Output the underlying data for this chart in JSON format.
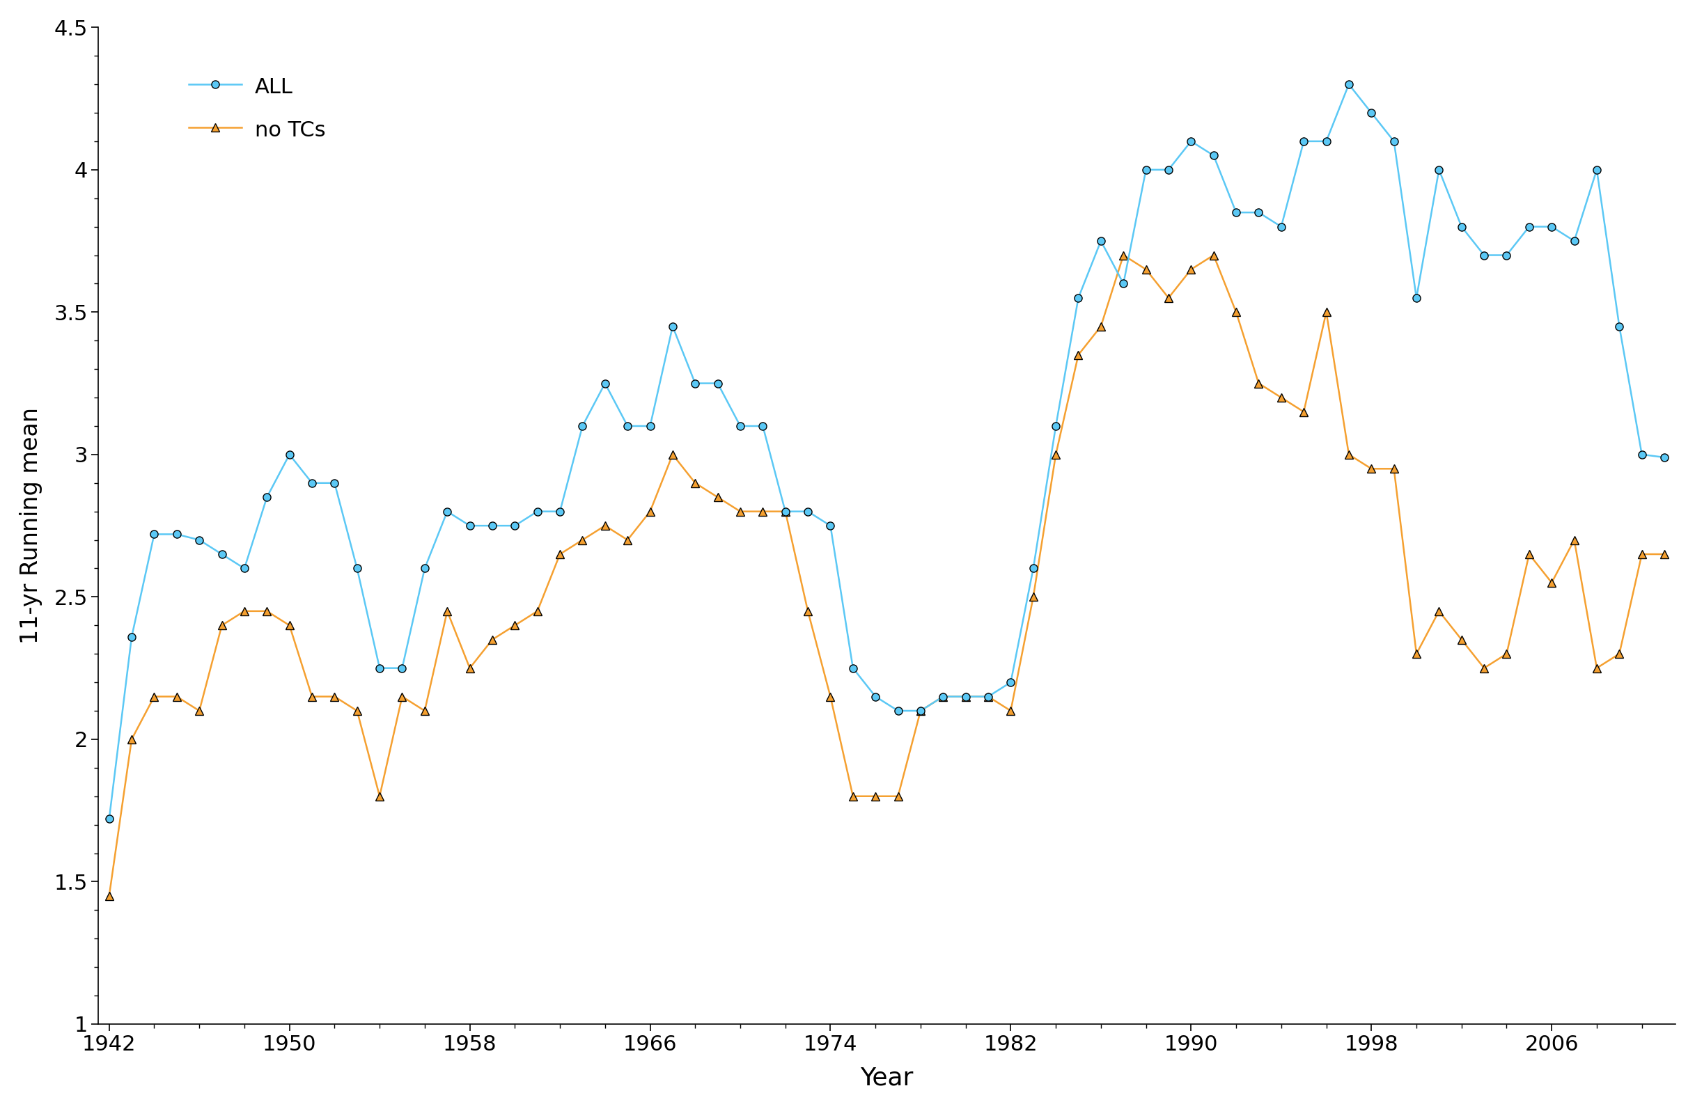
{
  "years_all": [
    1942,
    1943,
    1944,
    1945,
    1946,
    1947,
    1948,
    1949,
    1950,
    1951,
    1952,
    1953,
    1954,
    1955,
    1956,
    1957,
    1958,
    1959,
    1960,
    1961,
    1962,
    1963,
    1964,
    1965,
    1966,
    1967,
    1968,
    1969,
    1970,
    1971,
    1972,
    1973,
    1974,
    1975,
    1976,
    1977,
    1978,
    1979,
    1980,
    1981,
    1982,
    1983,
    1984,
    1985,
    1986,
    1987,
    1988,
    1989,
    1990,
    1991,
    1992,
    1993,
    1994,
    1995,
    1996,
    1997,
    1998,
    1999,
    2000,
    2001,
    2002,
    2003,
    2004,
    2005,
    2006,
    2007,
    2008,
    2009,
    2010,
    2011
  ],
  "values_all": [
    1.72,
    2.36,
    2.72,
    2.72,
    2.7,
    2.65,
    2.6,
    2.85,
    3.0,
    2.9,
    2.9,
    2.6,
    2.25,
    2.25,
    2.6,
    2.8,
    2.75,
    2.75,
    2.75,
    2.8,
    2.8,
    3.1,
    3.25,
    3.1,
    3.1,
    3.45,
    3.25,
    3.25,
    3.1,
    3.1,
    2.8,
    2.8,
    2.75,
    2.25,
    2.15,
    2.1,
    2.1,
    2.15,
    2.15,
    2.15,
    2.2,
    2.6,
    3.1,
    3.55,
    3.75,
    3.6,
    4.0,
    4.0,
    4.1,
    4.05,
    3.85,
    3.85,
    3.8,
    4.1,
    4.1,
    4.3,
    4.2,
    4.1,
    3.55,
    4.0,
    3.8,
    3.7,
    3.7,
    3.8,
    3.8,
    3.75,
    4.0,
    3.45,
    3.0,
    2.99
  ],
  "years_notc": [
    1942,
    1943,
    1944,
    1945,
    1946,
    1947,
    1948,
    1949,
    1950,
    1951,
    1952,
    1953,
    1954,
    1955,
    1956,
    1957,
    1958,
    1959,
    1960,
    1961,
    1962,
    1963,
    1964,
    1965,
    1966,
    1967,
    1968,
    1969,
    1970,
    1971,
    1972,
    1973,
    1974,
    1975,
    1976,
    1977,
    1978,
    1979,
    1980,
    1981,
    1982,
    1983,
    1984,
    1985,
    1986,
    1987,
    1988,
    1989,
    1990,
    1991,
    1992,
    1993,
    1994,
    1995,
    1996,
    1997,
    1998,
    1999,
    2000,
    2001,
    2002,
    2003,
    2004,
    2005,
    2006,
    2007,
    2008,
    2009,
    2010,
    2011
  ],
  "values_notc": [
    1.45,
    2.0,
    2.15,
    2.15,
    2.1,
    2.4,
    2.45,
    2.45,
    2.4,
    2.15,
    2.15,
    2.1,
    1.8,
    2.15,
    2.1,
    2.45,
    2.25,
    2.35,
    2.4,
    2.45,
    2.65,
    2.7,
    2.75,
    2.7,
    2.8,
    3.0,
    2.9,
    2.85,
    2.8,
    2.8,
    2.8,
    2.45,
    2.15,
    1.8,
    1.8,
    1.8,
    2.1,
    2.15,
    2.15,
    2.15,
    2.1,
    2.5,
    3.0,
    3.35,
    3.45,
    3.7,
    3.65,
    3.55,
    3.65,
    3.7,
    3.5,
    3.25,
    3.2,
    3.15,
    3.5,
    3.0,
    2.95,
    2.95,
    2.3,
    2.45,
    2.35,
    2.25,
    2.3,
    2.65,
    2.55,
    2.7,
    2.25,
    2.3,
    2.65,
    2.65
  ],
  "color_all": "#5bc8f5",
  "color_notc": "#f5a030",
  "xlabel": "Year",
  "ylabel": "11-yr Running mean",
  "ylim": [
    1.0,
    4.5
  ],
  "xlim": [
    1941.5,
    2011.5
  ],
  "yticks": [
    1.0,
    1.5,
    2.0,
    2.5,
    3.0,
    3.5,
    4.0,
    4.5
  ],
  "xticks": [
    1942,
    1950,
    1958,
    1966,
    1974,
    1982,
    1990,
    1998,
    2006
  ],
  "legend_all": "ALL",
  "legend_notc": "no TCs",
  "marker_all": "o",
  "marker_notc": "^",
  "markersize_all": 8,
  "markersize_notc": 9,
  "linewidth": 1.8,
  "xlabel_fontsize": 26,
  "ylabel_fontsize": 24,
  "tick_fontsize": 22,
  "legend_fontsize": 22,
  "background_color": "#ffffff"
}
